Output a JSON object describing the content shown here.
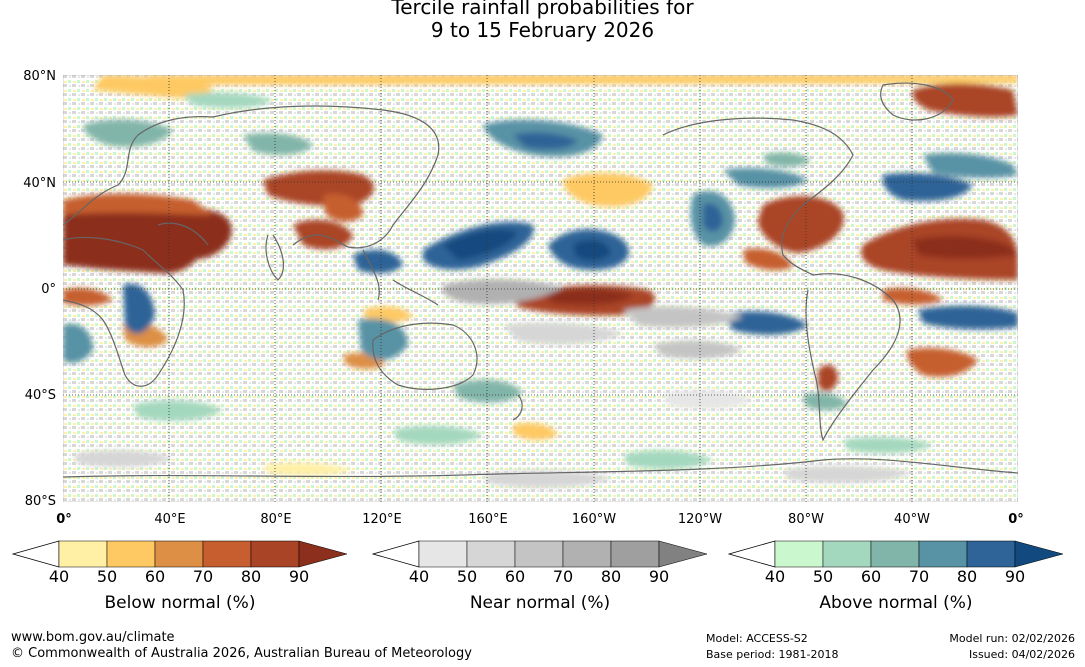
{
  "title": {
    "line1": "Tercile rainfall probabilities for",
    "line2": "9 to 15 February 2026"
  },
  "lat_labels": [
    "80°N",
    "40°N",
    "0°",
    "40°S",
    "80°S"
  ],
  "lon_labels": [
    "0°",
    "40°E",
    "80°E",
    "120°E",
    "160°E",
    "160°W",
    "120°W",
    "80°W",
    "40°W",
    "0°"
  ],
  "colorbars": [
    {
      "label": "Below normal (%)",
      "colors": [
        "#fff0a6",
        "#fec962",
        "#dd8f45",
        "#c65e2f",
        "#aa4426",
        "#8c2f1c"
      ],
      "ticks": [
        "40",
        "50",
        "60",
        "70",
        "80",
        "90"
      ]
    },
    {
      "label": "Near normal (%)",
      "colors": [
        "#e6e6e6",
        "#d6d6d6",
        "#c4c4c4",
        "#b1b1b1",
        "#9f9f9f",
        "#818181"
      ],
      "ticks": [
        "40",
        "50",
        "60",
        "70",
        "80",
        "90"
      ]
    },
    {
      "label": "Above normal (%)",
      "colors": [
        "#caf7cd",
        "#a4d8be",
        "#82b5a9",
        "#5892a5",
        "#2e6497",
        "#124a7f"
      ],
      "ticks": [
        "40",
        "50",
        "60",
        "70",
        "80",
        "90"
      ]
    }
  ],
  "footer": {
    "website": "www.bom.gov.au/climate",
    "copyright": "© Commonwealth of Australia 2026, Australian Bureau of Meteorology",
    "model": "Model: ACCESS-S2",
    "base_period": "Base period: 1981-2018",
    "model_run": "Model run: 02/02/2026",
    "issued": "Issued: 04/02/2026"
  }
}
